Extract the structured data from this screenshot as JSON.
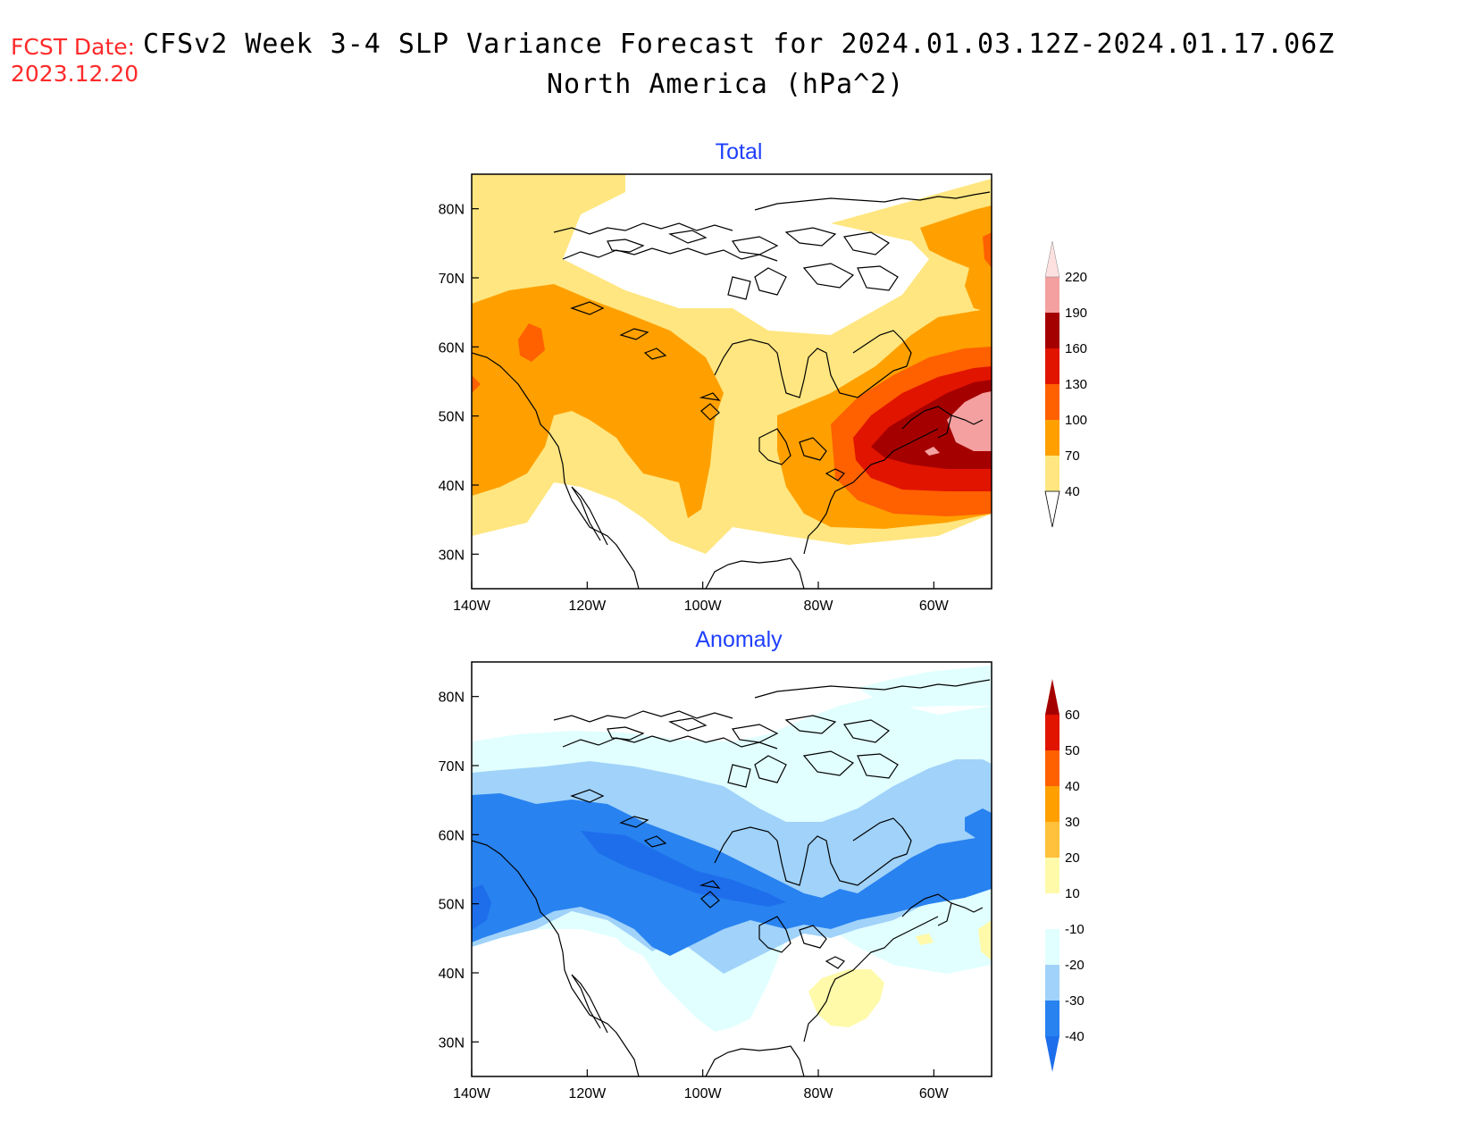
{
  "header": {
    "fcst_label": "FCST Date:",
    "fcst_date": "2023.12.20",
    "title": "CFSv2 Week 3-4 SLP Variance Forecast for 2024.01.03.12Z-2024.01.17.06Z",
    "subtitle": "North America (hPa^2)"
  },
  "map": {
    "lat_ticks": [
      "80N",
      "70N",
      "60N",
      "50N",
      "40N",
      "30N"
    ],
    "lon_ticks": [
      "140W",
      "120W",
      "100W",
      "80W",
      "60W"
    ],
    "lat_range": [
      25,
      85
    ],
    "lon_range": [
      -140,
      -50
    ]
  },
  "panels": [
    {
      "title": "Total",
      "colorbar": {
        "levels": [
          "40",
          "70",
          "100",
          "130",
          "160",
          "190",
          "220"
        ],
        "colors": [
          "#ffe680",
          "#ffa000",
          "#ff6000",
          "#e11400",
          "#a50000",
          "#f4a0a0",
          "#fde0e0"
        ]
      }
    },
    {
      "title": "Anomaly",
      "colorbar": {
        "levels": [
          "-40",
          "-30",
          "-20",
          "-10",
          "10",
          "20",
          "30",
          "40",
          "50",
          "60"
        ],
        "colors": [
          "#1e6eeb",
          "#2882f0",
          "#a0d2fa",
          "#e1ffff",
          "#ffffff",
          "#fffaaa",
          "#ffc03c",
          "#ffa000",
          "#ff6000",
          "#e11400",
          "#a50000"
        ]
      }
    }
  ],
  "colors": {
    "title_blue": "#1f3fff",
    "date_red": "#ff2a2a"
  }
}
